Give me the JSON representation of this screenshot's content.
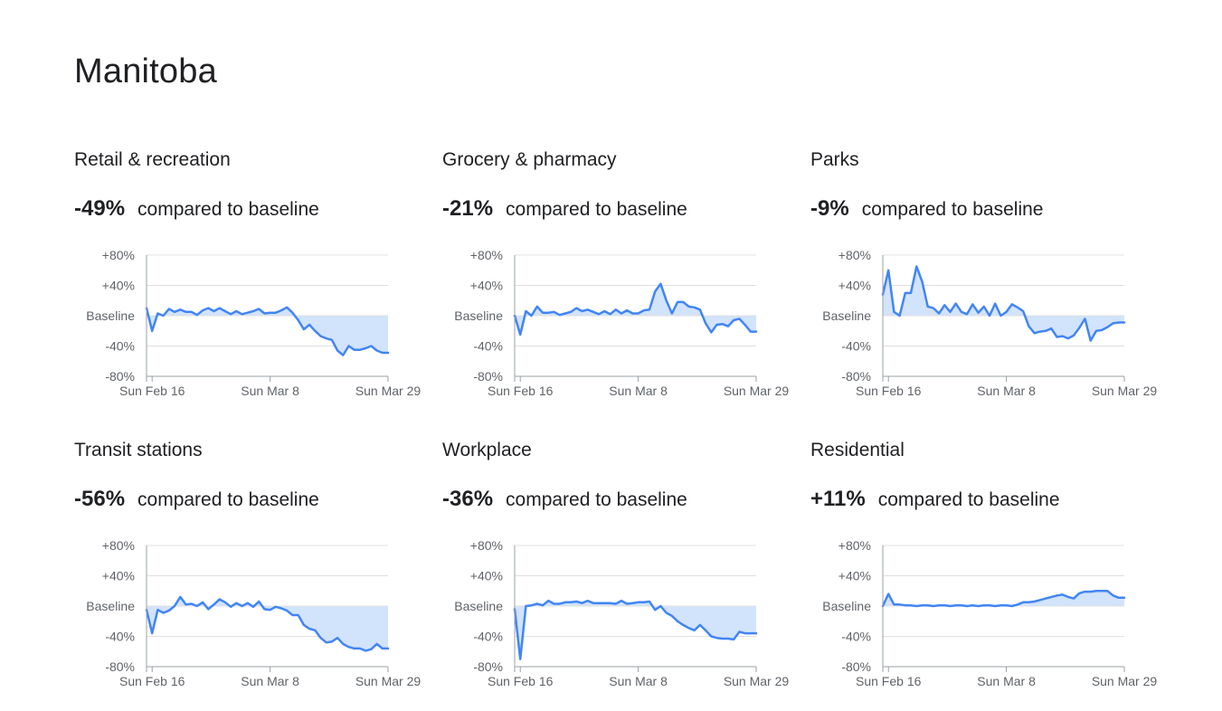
{
  "region_title": "Manitoba",
  "stat_suffix": "compared to baseline",
  "colors": {
    "line": "#4285f4",
    "fill": "#d2e3fc",
    "grid": "#e0e0e0",
    "axis": "#9aa0a6",
    "text": "#5f6368"
  },
  "chart_data": [
    {
      "type": "line",
      "title": "Retail & recreation",
      "headline": "-49%",
      "y_tick_labels": [
        "+80%",
        "+40%",
        "Baseline",
        "-40%",
        "-80%"
      ],
      "y_ticks": [
        80,
        40,
        0,
        -40,
        -80
      ],
      "ylim": [
        -80,
        80
      ],
      "x_tick_labels": [
        "Sun Feb 16",
        "Sun Mar 8",
        "Sun Mar 29"
      ],
      "x_ticks": [
        "2020-02-16",
        "2020-03-08",
        "2020-03-29"
      ],
      "x": [
        "2020-02-15",
        "2020-02-16",
        "2020-02-17",
        "2020-02-18",
        "2020-02-19",
        "2020-02-20",
        "2020-02-21",
        "2020-02-22",
        "2020-02-23",
        "2020-02-24",
        "2020-02-25",
        "2020-02-26",
        "2020-02-27",
        "2020-02-28",
        "2020-02-29",
        "2020-03-01",
        "2020-03-02",
        "2020-03-03",
        "2020-03-04",
        "2020-03-05",
        "2020-03-06",
        "2020-03-07",
        "2020-03-08",
        "2020-03-09",
        "2020-03-10",
        "2020-03-11",
        "2020-03-12",
        "2020-03-13",
        "2020-03-14",
        "2020-03-15",
        "2020-03-16",
        "2020-03-17",
        "2020-03-18",
        "2020-03-19",
        "2020-03-20",
        "2020-03-21",
        "2020-03-22",
        "2020-03-23",
        "2020-03-24",
        "2020-03-25",
        "2020-03-26",
        "2020-03-27",
        "2020-03-28",
        "2020-03-29"
      ],
      "values": [
        10,
        -20,
        3,
        0,
        9,
        5,
        8,
        5,
        5,
        1,
        7,
        10,
        6,
        10,
        6,
        2,
        6,
        2,
        4,
        6,
        9,
        3,
        4,
        4,
        7,
        11,
        4,
        -6,
        -18,
        -12,
        -20,
        -27,
        -30,
        -32,
        -46,
        -52,
        -40,
        -45,
        -45,
        -43,
        -40,
        -46,
        -49,
        -49
      ]
    },
    {
      "type": "line",
      "title": "Grocery & pharmacy",
      "headline": "-21%",
      "y_tick_labels": [
        "+80%",
        "+40%",
        "Baseline",
        "-40%",
        "-80%"
      ],
      "y_ticks": [
        80,
        40,
        0,
        -40,
        -80
      ],
      "ylim": [
        -80,
        80
      ],
      "x_tick_labels": [
        "Sun Feb 16",
        "Sun Mar 8",
        "Sun Mar 29"
      ],
      "x_ticks": [
        "2020-02-16",
        "2020-03-08",
        "2020-03-29"
      ],
      "x": [
        "2020-02-15",
        "2020-02-16",
        "2020-02-17",
        "2020-02-18",
        "2020-02-19",
        "2020-02-20",
        "2020-02-21",
        "2020-02-22",
        "2020-02-23",
        "2020-02-24",
        "2020-02-25",
        "2020-02-26",
        "2020-02-27",
        "2020-02-28",
        "2020-02-29",
        "2020-03-01",
        "2020-03-02",
        "2020-03-03",
        "2020-03-04",
        "2020-03-05",
        "2020-03-06",
        "2020-03-07",
        "2020-03-08",
        "2020-03-09",
        "2020-03-10",
        "2020-03-11",
        "2020-03-12",
        "2020-03-13",
        "2020-03-14",
        "2020-03-15",
        "2020-03-16",
        "2020-03-17",
        "2020-03-18",
        "2020-03-19",
        "2020-03-20",
        "2020-03-21",
        "2020-03-22",
        "2020-03-23",
        "2020-03-24",
        "2020-03-25",
        "2020-03-26",
        "2020-03-27",
        "2020-03-28",
        "2020-03-29"
      ],
      "values": [
        0,
        -25,
        6,
        0,
        12,
        4,
        4,
        5,
        1,
        3,
        5,
        10,
        6,
        8,
        5,
        2,
        6,
        2,
        8,
        3,
        7,
        3,
        3,
        7,
        8,
        32,
        42,
        20,
        3,
        18,
        18,
        12,
        11,
        8,
        -10,
        -22,
        -12,
        -11,
        -14,
        -6,
        -4,
        -12,
        -21,
        -21
      ]
    },
    {
      "type": "line",
      "title": "Parks",
      "headline": "-9%",
      "y_tick_labels": [
        "+80%",
        "+40%",
        "Baseline",
        "-40%",
        "-80%"
      ],
      "y_ticks": [
        80,
        40,
        0,
        -40,
        -80
      ],
      "ylim": [
        -80,
        80
      ],
      "x_tick_labels": [
        "Sun Feb 16",
        "Sun Mar 8",
        "Sun Mar 29"
      ],
      "x_ticks": [
        "2020-02-16",
        "2020-03-08",
        "2020-03-29"
      ],
      "x": [
        "2020-02-15",
        "2020-02-16",
        "2020-02-17",
        "2020-02-18",
        "2020-02-19",
        "2020-02-20",
        "2020-02-21",
        "2020-02-22",
        "2020-02-23",
        "2020-02-24",
        "2020-02-25",
        "2020-02-26",
        "2020-02-27",
        "2020-02-28",
        "2020-02-29",
        "2020-03-01",
        "2020-03-02",
        "2020-03-03",
        "2020-03-04",
        "2020-03-05",
        "2020-03-06",
        "2020-03-07",
        "2020-03-08",
        "2020-03-09",
        "2020-03-10",
        "2020-03-11",
        "2020-03-12",
        "2020-03-13",
        "2020-03-14",
        "2020-03-15",
        "2020-03-16",
        "2020-03-17",
        "2020-03-18",
        "2020-03-19",
        "2020-03-20",
        "2020-03-21",
        "2020-03-22",
        "2020-03-23",
        "2020-03-24",
        "2020-03-25",
        "2020-03-26",
        "2020-03-27",
        "2020-03-28",
        "2020-03-29"
      ],
      "values": [
        28,
        60,
        5,
        0,
        30,
        30,
        65,
        45,
        12,
        10,
        3,
        14,
        5,
        16,
        5,
        2,
        15,
        4,
        12,
        0,
        16,
        0,
        5,
        15,
        11,
        6,
        -14,
        -23,
        -21,
        -20,
        -17,
        -28,
        -27,
        -30,
        -26,
        -16,
        -4,
        -33,
        -20,
        -19,
        -15,
        -10,
        -9,
        -9
      ]
    },
    {
      "type": "line",
      "title": "Transit stations",
      "headline": "-56%",
      "y_tick_labels": [
        "+80%",
        "+40%",
        "Baseline",
        "-40%",
        "-80%"
      ],
      "y_ticks": [
        80,
        40,
        0,
        -40,
        -80
      ],
      "ylim": [
        -80,
        80
      ],
      "x_tick_labels": [
        "Sun Feb 16",
        "Sun Mar 8",
        "Sun Mar 29"
      ],
      "x_ticks": [
        "2020-02-16",
        "2020-03-08",
        "2020-03-29"
      ],
      "x": [
        "2020-02-15",
        "2020-02-16",
        "2020-02-17",
        "2020-02-18",
        "2020-02-19",
        "2020-02-20",
        "2020-02-21",
        "2020-02-22",
        "2020-02-23",
        "2020-02-24",
        "2020-02-25",
        "2020-02-26",
        "2020-02-27",
        "2020-02-28",
        "2020-02-29",
        "2020-03-01",
        "2020-03-02",
        "2020-03-03",
        "2020-03-04",
        "2020-03-05",
        "2020-03-06",
        "2020-03-07",
        "2020-03-08",
        "2020-03-09",
        "2020-03-10",
        "2020-03-11",
        "2020-03-12",
        "2020-03-13",
        "2020-03-14",
        "2020-03-15",
        "2020-03-16",
        "2020-03-17",
        "2020-03-18",
        "2020-03-19",
        "2020-03-20",
        "2020-03-21",
        "2020-03-22",
        "2020-03-23",
        "2020-03-24",
        "2020-03-25",
        "2020-03-26",
        "2020-03-27",
        "2020-03-28",
        "2020-03-29"
      ],
      "values": [
        -5,
        -36,
        -5,
        -9,
        -6,
        0,
        12,
        2,
        3,
        0,
        5,
        -4,
        2,
        9,
        5,
        -1,
        4,
        0,
        4,
        -1,
        6,
        -4,
        -5,
        -1,
        -3,
        -6,
        -12,
        -12,
        -25,
        -30,
        -32,
        -42,
        -48,
        -47,
        -42,
        -50,
        -54,
        -56,
        -56,
        -59,
        -57,
        -50,
        -56,
        -56
      ]
    },
    {
      "type": "line",
      "title": "Workplace",
      "headline": "-36%",
      "y_tick_labels": [
        "+80%",
        "+40%",
        "Baseline",
        "-40%",
        "-80%"
      ],
      "y_ticks": [
        80,
        40,
        0,
        -40,
        -80
      ],
      "ylim": [
        -80,
        80
      ],
      "x_tick_labels": [
        "Sun Feb 16",
        "Sun Mar 8",
        "Sun Mar 29"
      ],
      "x_ticks": [
        "2020-02-16",
        "2020-03-08",
        "2020-03-29"
      ],
      "x": [
        "2020-02-15",
        "2020-02-16",
        "2020-02-17",
        "2020-02-18",
        "2020-02-19",
        "2020-02-20",
        "2020-02-21",
        "2020-02-22",
        "2020-02-23",
        "2020-02-24",
        "2020-02-25",
        "2020-02-26",
        "2020-02-27",
        "2020-02-28",
        "2020-02-29",
        "2020-03-01",
        "2020-03-02",
        "2020-03-03",
        "2020-03-04",
        "2020-03-05",
        "2020-03-06",
        "2020-03-07",
        "2020-03-08",
        "2020-03-09",
        "2020-03-10",
        "2020-03-11",
        "2020-03-12",
        "2020-03-13",
        "2020-03-14",
        "2020-03-15",
        "2020-03-16",
        "2020-03-17",
        "2020-03-18",
        "2020-03-19",
        "2020-03-20",
        "2020-03-21",
        "2020-03-22",
        "2020-03-23",
        "2020-03-24",
        "2020-03-25",
        "2020-03-26",
        "2020-03-27",
        "2020-03-28",
        "2020-03-29"
      ],
      "values": [
        -4,
        -70,
        0,
        1,
        3,
        1,
        7,
        3,
        3,
        5,
        5,
        6,
        4,
        7,
        4,
        4,
        4,
        4,
        3,
        7,
        3,
        4,
        5,
        5,
        6,
        -5,
        0,
        -9,
        -13,
        -20,
        -25,
        -29,
        -32,
        -25,
        -32,
        -40,
        -42,
        -43,
        -43,
        -44,
        -34,
        -36,
        -36,
        -36
      ]
    },
    {
      "type": "line",
      "title": "Residential",
      "headline": "+11%",
      "y_tick_labels": [
        "+80%",
        "+40%",
        "Baseline",
        "-40%",
        "-80%"
      ],
      "y_ticks": [
        80,
        40,
        0,
        -40,
        -80
      ],
      "ylim": [
        -80,
        80
      ],
      "x_tick_labels": [
        "Sun Feb 16",
        "Sun Mar 8",
        "Sun Mar 29"
      ],
      "x_ticks": [
        "2020-02-16",
        "2020-03-08",
        "2020-03-29"
      ],
      "x": [
        "2020-02-15",
        "2020-02-16",
        "2020-02-17",
        "2020-02-18",
        "2020-02-19",
        "2020-02-20",
        "2020-02-21",
        "2020-02-22",
        "2020-02-23",
        "2020-02-24",
        "2020-02-25",
        "2020-02-26",
        "2020-02-27",
        "2020-02-28",
        "2020-02-29",
        "2020-03-01",
        "2020-03-02",
        "2020-03-03",
        "2020-03-04",
        "2020-03-05",
        "2020-03-06",
        "2020-03-07",
        "2020-03-08",
        "2020-03-09",
        "2020-03-10",
        "2020-03-11",
        "2020-03-12",
        "2020-03-13",
        "2020-03-14",
        "2020-03-15",
        "2020-03-16",
        "2020-03-17",
        "2020-03-18",
        "2020-03-19",
        "2020-03-20",
        "2020-03-21",
        "2020-03-22",
        "2020-03-23",
        "2020-03-24",
        "2020-03-25",
        "2020-03-26",
        "2020-03-27",
        "2020-03-28",
        "2020-03-29"
      ],
      "values": [
        0,
        16,
        2,
        2,
        1,
        1,
        0,
        1,
        1,
        0,
        1,
        1,
        0,
        1,
        1,
        0,
        1,
        0,
        1,
        1,
        0,
        1,
        1,
        0,
        2,
        5,
        5,
        6,
        8,
        10,
        12,
        14,
        15,
        12,
        10,
        17,
        19,
        19,
        20,
        20,
        20,
        14,
        11,
        11
      ]
    }
  ]
}
